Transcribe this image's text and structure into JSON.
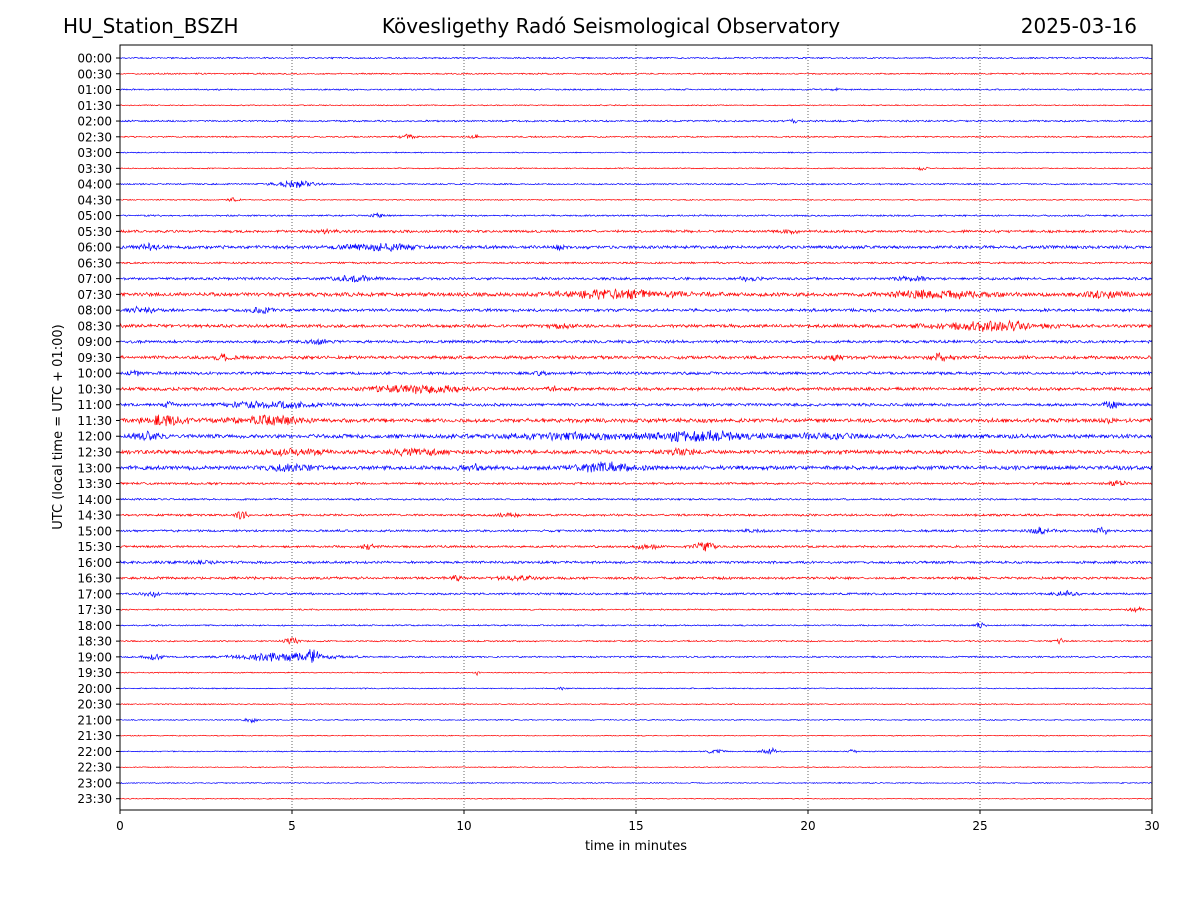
{
  "header": {
    "station": "HU_Station_BSZH",
    "observatory": "Kövesligethy Radó Seismological Observatory",
    "date": "2025-03-16"
  },
  "chart_data": {
    "type": "line",
    "title": "Kövesligethy Radó Seismological Observatory",
    "xlabel": "time in minutes",
    "ylabel": "UTC (local time = UTC + 01:00)",
    "xlim": [
      0,
      30
    ],
    "x_ticks": [
      "0",
      "5",
      "10",
      "15",
      "20",
      "25",
      "30"
    ],
    "grid": "vertical dotted lines at 5, 10, 15, 20, 25 minutes",
    "colors": {
      "even_hour": "#0000ff",
      "half_hour": "#ff0000"
    },
    "traces": [
      {
        "label": "00:00",
        "color": "#0000ff",
        "amp": 0.8,
        "events": []
      },
      {
        "label": "00:30",
        "color": "#ff0000",
        "amp": 0.8,
        "events": []
      },
      {
        "label": "01:00",
        "color": "#0000ff",
        "amp": 0.8,
        "events": [
          [
            20.8,
            0.2,
            2
          ]
        ]
      },
      {
        "label": "01:30",
        "color": "#ff0000",
        "amp": 0.6,
        "events": []
      },
      {
        "label": "02:00",
        "color": "#0000ff",
        "amp": 1.0,
        "events": [
          [
            19.6,
            0.3,
            2
          ]
        ]
      },
      {
        "label": "02:30",
        "color": "#ff0000",
        "amp": 0.8,
        "events": [
          [
            8.3,
            0.6,
            2
          ],
          [
            10.3,
            0.2,
            3
          ]
        ]
      },
      {
        "label": "03:00",
        "color": "#0000ff",
        "amp": 0.6,
        "events": []
      },
      {
        "label": "03:30",
        "color": "#ff0000",
        "amp": 0.6,
        "events": [
          [
            23.3,
            0.3,
            2
          ]
        ]
      },
      {
        "label": "04:00",
        "color": "#0000ff",
        "amp": 0.8,
        "events": [
          [
            5.1,
            1.1,
            4
          ]
        ]
      },
      {
        "label": "04:30",
        "color": "#ff0000",
        "amp": 0.6,
        "events": [
          [
            3.3,
            0.3,
            2
          ]
        ]
      },
      {
        "label": "05:00",
        "color": "#0000ff",
        "amp": 0.9,
        "events": [
          [
            7.5,
            0.3,
            3
          ]
        ]
      },
      {
        "label": "05:30",
        "color": "#ff0000",
        "amp": 1.4,
        "events": [
          [
            6.0,
            0.8,
            2
          ],
          [
            19.5,
            0.6,
            2
          ]
        ]
      },
      {
        "label": "06:00",
        "color": "#0000ff",
        "amp": 1.8,
        "events": [
          [
            0.8,
            0.6,
            3
          ],
          [
            7.5,
            2.2,
            3
          ],
          [
            12.8,
            0.3,
            3
          ]
        ]
      },
      {
        "label": "06:30",
        "color": "#ff0000",
        "amp": 1.0,
        "events": []
      },
      {
        "label": "07:00",
        "color": "#0000ff",
        "amp": 1.4,
        "events": [
          [
            6.8,
            1.2,
            3
          ],
          [
            18.3,
            0.6,
            3
          ],
          [
            23.0,
            1.0,
            2
          ]
        ]
      },
      {
        "label": "07:30",
        "color": "#ff0000",
        "amp": 2.2,
        "events": [
          [
            14.5,
            3.5,
            4
          ],
          [
            23.8,
            2.5,
            4
          ],
          [
            28.6,
            1.2,
            3
          ]
        ]
      },
      {
        "label": "08:00",
        "color": "#0000ff",
        "amp": 1.6,
        "events": [
          [
            0.6,
            0.8,
            3
          ],
          [
            4.1,
            0.6,
            3
          ]
        ]
      },
      {
        "label": "08:30",
        "color": "#ff0000",
        "amp": 1.8,
        "events": [
          [
            25.2,
            3.0,
            5
          ],
          [
            12.8,
            0.6,
            2
          ]
        ]
      },
      {
        "label": "09:00",
        "color": "#0000ff",
        "amp": 1.6,
        "events": [
          [
            5.8,
            0.6,
            2
          ]
        ]
      },
      {
        "label": "09:30",
        "color": "#ff0000",
        "amp": 1.8,
        "events": [
          [
            3.0,
            0.5,
            3
          ],
          [
            23.8,
            0.6,
            4
          ],
          [
            20.8,
            0.5,
            3
          ]
        ]
      },
      {
        "label": "10:00",
        "color": "#0000ff",
        "amp": 1.6,
        "events": [
          [
            0.4,
            0.4,
            3
          ],
          [
            12.3,
            0.4,
            2
          ]
        ]
      },
      {
        "label": "10:30",
        "color": "#ff0000",
        "amp": 1.8,
        "events": [
          [
            8.6,
            2.6,
            4
          ],
          [
            12.7,
            0.4,
            3
          ]
        ]
      },
      {
        "label": "11:00",
        "color": "#0000ff",
        "amp": 1.6,
        "events": [
          [
            4.5,
            2.2,
            4
          ],
          [
            1.4,
            0.3,
            3
          ],
          [
            28.8,
            0.5,
            4
          ]
        ]
      },
      {
        "label": "11:30",
        "color": "#ff0000",
        "amp": 2.2,
        "events": [
          [
            1.4,
            1.4,
            5
          ],
          [
            4.3,
            2.0,
            4
          ],
          [
            28.8,
            0.3,
            3
          ]
        ]
      },
      {
        "label": "12:00",
        "color": "#0000ff",
        "amp": 2.2,
        "events": [
          [
            0.8,
            0.8,
            4
          ],
          [
            13.2,
            3.8,
            3
          ],
          [
            16.8,
            2.6,
            5
          ],
          [
            20.3,
            3.0,
            2
          ]
        ]
      },
      {
        "label": "12:30",
        "color": "#ff0000",
        "amp": 2.2,
        "events": [
          [
            5.0,
            1.6,
            3
          ],
          [
            8.6,
            1.6,
            3
          ],
          [
            16.3,
            0.8,
            3
          ]
        ]
      },
      {
        "label": "13:00",
        "color": "#0000ff",
        "amp": 2.2,
        "events": [
          [
            14.1,
            1.8,
            5
          ],
          [
            10.3,
            0.8,
            3
          ],
          [
            5.0,
            1.4,
            3
          ]
        ]
      },
      {
        "label": "13:30",
        "color": "#ff0000",
        "amp": 1.2,
        "events": [
          [
            29.0,
            0.5,
            3
          ]
        ]
      },
      {
        "label": "14:00",
        "color": "#0000ff",
        "amp": 1.0,
        "events": []
      },
      {
        "label": "14:30",
        "color": "#ff0000",
        "amp": 1.2,
        "events": [
          [
            3.5,
            0.4,
            4
          ],
          [
            11.3,
            0.6,
            2
          ]
        ]
      },
      {
        "label": "15:00",
        "color": "#0000ff",
        "amp": 1.2,
        "events": [
          [
            26.8,
            0.6,
            4
          ],
          [
            28.6,
            0.4,
            4
          ],
          [
            18.5,
            0.6,
            2
          ]
        ]
      },
      {
        "label": "15:30",
        "color": "#ff0000",
        "amp": 1.2,
        "events": [
          [
            17.0,
            0.6,
            5
          ],
          [
            7.2,
            0.4,
            3
          ],
          [
            15.3,
            0.6,
            3
          ]
        ]
      },
      {
        "label": "16:00",
        "color": "#0000ff",
        "amp": 1.4,
        "events": [
          [
            2.3,
            1.0,
            2
          ]
        ]
      },
      {
        "label": "16:30",
        "color": "#ff0000",
        "amp": 1.4,
        "events": [
          [
            11.5,
            1.0,
            2
          ],
          [
            9.8,
            0.3,
            3
          ]
        ]
      },
      {
        "label": "17:00",
        "color": "#0000ff",
        "amp": 1.2,
        "events": [
          [
            0.9,
            0.4,
            3
          ],
          [
            27.5,
            0.6,
            3
          ]
        ]
      },
      {
        "label": "17:30",
        "color": "#ff0000",
        "amp": 0.8,
        "events": [
          [
            29.5,
            0.4,
            3
          ]
        ]
      },
      {
        "label": "18:00",
        "color": "#0000ff",
        "amp": 0.8,
        "events": [
          [
            25.0,
            0.3,
            3
          ]
        ]
      },
      {
        "label": "18:30",
        "color": "#ff0000",
        "amp": 0.8,
        "events": [
          [
            5.0,
            0.4,
            4
          ],
          [
            27.3,
            0.2,
            4
          ]
        ]
      },
      {
        "label": "19:00",
        "color": "#0000ff",
        "amp": 0.9,
        "events": [
          [
            4.8,
            2.6,
            5
          ],
          [
            5.6,
            0.3,
            8
          ],
          [
            1.0,
            0.5,
            3
          ]
        ]
      },
      {
        "label": "19:30",
        "color": "#ff0000",
        "amp": 0.6,
        "events": [
          [
            10.4,
            0.1,
            4
          ]
        ]
      },
      {
        "label": "20:00",
        "color": "#0000ff",
        "amp": 0.6,
        "events": [
          [
            12.8,
            0.2,
            2
          ]
        ]
      },
      {
        "label": "20:30",
        "color": "#ff0000",
        "amp": 0.6,
        "events": []
      },
      {
        "label": "21:00",
        "color": "#0000ff",
        "amp": 0.6,
        "events": [
          [
            3.8,
            0.3,
            3
          ]
        ]
      },
      {
        "label": "21:30",
        "color": "#ff0000",
        "amp": 0.5,
        "events": []
      },
      {
        "label": "22:00",
        "color": "#0000ff",
        "amp": 0.6,
        "events": [
          [
            18.9,
            0.5,
            4
          ],
          [
            17.3,
            0.5,
            2
          ],
          [
            21.3,
            0.2,
            2
          ]
        ]
      },
      {
        "label": "22:30",
        "color": "#ff0000",
        "amp": 0.5,
        "events": []
      },
      {
        "label": "23:00",
        "color": "#0000ff",
        "amp": 0.6,
        "events": []
      },
      {
        "label": "23:30",
        "color": "#ff0000",
        "amp": 0.5,
        "events": []
      }
    ]
  }
}
